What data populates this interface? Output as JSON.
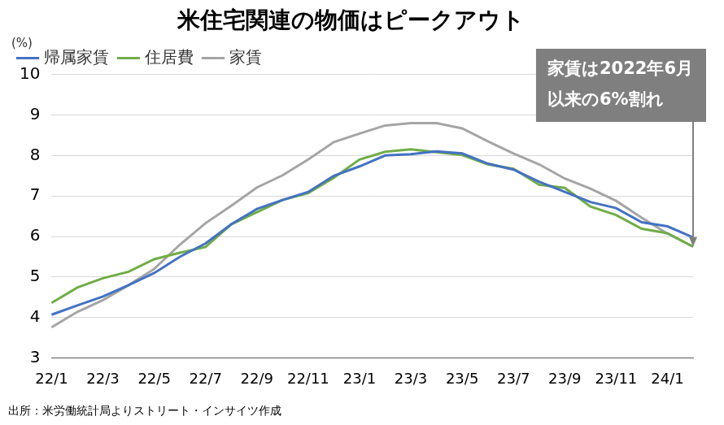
{
  "chart_data": {
    "type": "line",
    "title": "米住宅関連の物価はピークアウト",
    "ylabel": "(%)",
    "source": "出所：米労働統計局よりストリート・インサイツ作成",
    "categories": [
      "22/1",
      null,
      "22/3",
      null,
      "22/5",
      null,
      "22/7",
      null,
      "22/9",
      null,
      "22/11",
      null,
      "23/1",
      null,
      "23/3",
      null,
      "23/5",
      null,
      "23/7",
      null,
      "23/9",
      null,
      "23/11",
      null,
      "24/1",
      null
    ],
    "series": [
      {
        "name": "帰属家賃",
        "color": "#4472c4",
        "values": [
          4.07,
          4.3,
          4.52,
          4.8,
          5.1,
          5.5,
          5.83,
          6.3,
          6.68,
          6.9,
          7.1,
          7.5,
          7.73,
          8.0,
          8.03,
          8.1,
          8.05,
          7.8,
          7.65,
          7.35,
          7.1,
          6.85,
          6.7,
          6.35,
          6.25,
          5.98
        ]
      },
      {
        "name": "住居費",
        "color": "#70ad47",
        "values": [
          4.36,
          4.74,
          4.97,
          5.13,
          5.44,
          5.6,
          5.74,
          6.3,
          6.6,
          6.9,
          7.07,
          7.45,
          7.9,
          8.09,
          8.15,
          8.08,
          8.01,
          7.78,
          7.67,
          7.28,
          7.2,
          6.74,
          6.53,
          6.19,
          6.08,
          5.75
        ]
      },
      {
        "name": "家賃",
        "color": "#a5a5a5",
        "values": [
          3.76,
          4.14,
          4.43,
          4.8,
          5.2,
          5.8,
          6.33,
          6.76,
          7.21,
          7.51,
          7.9,
          8.33,
          8.54,
          8.74,
          8.8,
          8.8,
          8.67,
          8.35,
          8.05,
          7.78,
          7.43,
          7.18,
          6.88,
          6.46,
          6.07,
          5.75
        ]
      }
    ],
    "ylim": [
      3,
      10
    ],
    "yticks": [
      3,
      4,
      5,
      6,
      7,
      8,
      9,
      10
    ],
    "grid": true,
    "legend": "top left",
    "annotation": {
      "text": [
        "家賃は2022年6月",
        "以来の6%割れ"
      ],
      "series": "家賃",
      "color": "#7f7f7f"
    }
  }
}
